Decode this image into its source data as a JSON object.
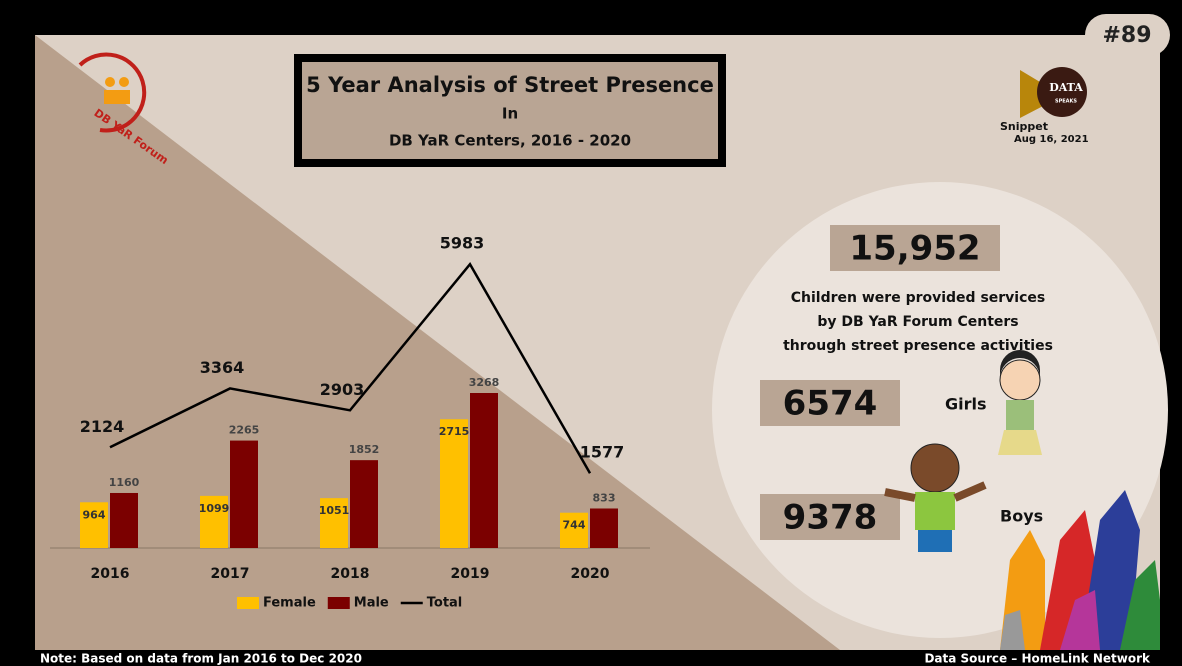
{
  "badge": "#89",
  "logo": "DB YaR Forum",
  "brand": {
    "name": "DATA",
    "tagline": "SPEAKS"
  },
  "snippet": {
    "label": "Snippet",
    "date": "Aug 16, 2021"
  },
  "chart_data": {
    "type": "bar",
    "title": "5 Year Analysis of Street Presence",
    "subtitle": "In",
    "caption": "DB YaR Centers, 2016 - 2020",
    "categories": [
      "2016",
      "2017",
      "2018",
      "2019",
      "2020"
    ],
    "series": [
      {
        "name": "Female",
        "color": "#ffc000",
        "values": [
          964,
          1099,
          1051,
          2715,
          744
        ]
      },
      {
        "name": "Male",
        "color": "#7b0000",
        "values": [
          1160,
          2265,
          1852,
          3268,
          833
        ]
      },
      {
        "name": "Total",
        "type": "line",
        "color": "#000000",
        "values": [
          2124,
          3364,
          2903,
          5983,
          1577
        ]
      }
    ],
    "ylim": [
      0,
      7000
    ],
    "legend": "bottom"
  },
  "stats": {
    "total": "15,952",
    "description": [
      "Children were provided services",
      "by DB YaR Forum Centers",
      "through street presence activities"
    ],
    "girls": {
      "value": 6574,
      "label": "Girls"
    },
    "boys": {
      "value": 9378,
      "label": "Boys"
    }
  },
  "note": "Note: Based on data from Jan 2016 to Dec 2020",
  "source": "Data Source – HomeLink Network"
}
